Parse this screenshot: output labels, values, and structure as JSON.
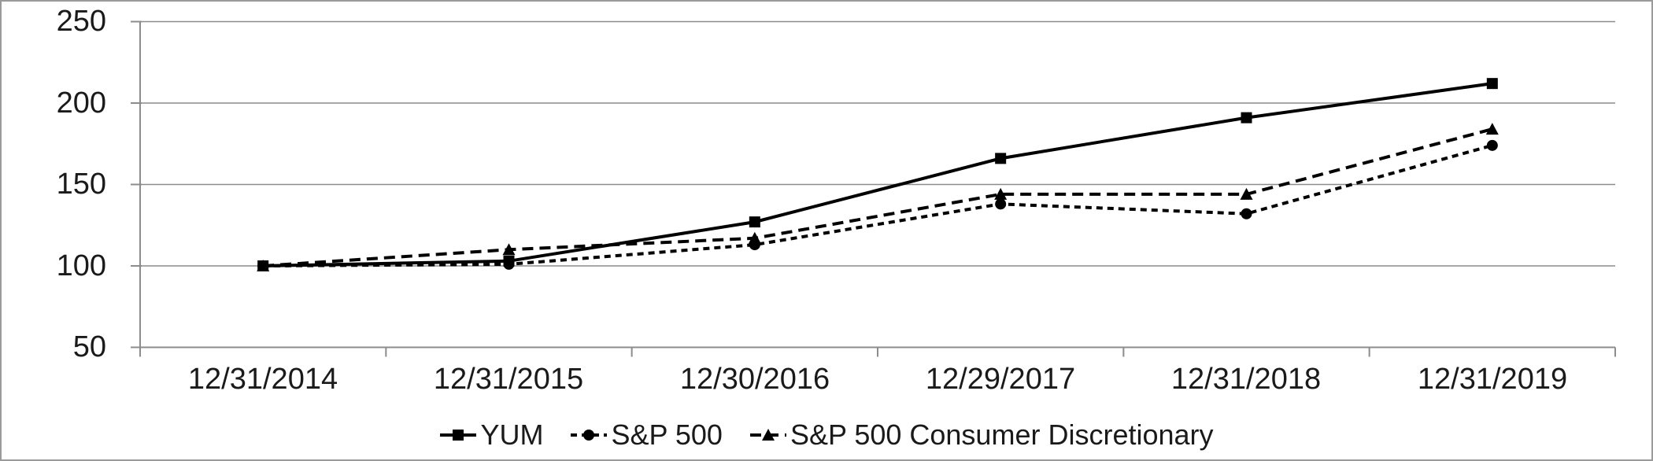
{
  "chart_data": {
    "type": "line",
    "title": "",
    "xlabel": "",
    "ylabel": "",
    "categories": [
      "12/31/2014",
      "12/31/2015",
      "12/30/2016",
      "12/29/2017",
      "12/31/2018",
      "12/31/2019"
    ],
    "series": [
      {
        "name": "YUM",
        "marker": "square",
        "line": "solid",
        "values": [
          100,
          103,
          127,
          166,
          191,
          212
        ]
      },
      {
        "name": "S&P 500",
        "marker": "circle",
        "line": "dashed-short",
        "values": [
          100,
          101,
          113,
          138,
          132,
          174
        ]
      },
      {
        "name": "S&P 500 Consumer Discretionary",
        "marker": "triangle",
        "line": "dashed-long",
        "values": [
          100,
          110,
          117,
          144,
          144,
          184
        ]
      }
    ],
    "ylim": [
      50,
      250
    ],
    "ytick_values": [
      250,
      200,
      150,
      100,
      50
    ],
    "ytick_labels": [
      "250",
      "200",
      "150",
      "100",
      "50"
    ],
    "grid": "horizontal",
    "legend_position": "bottom",
    "line_color": "#000000"
  },
  "colors": {
    "background": "#ffffff",
    "border": "#9a9a9a",
    "axis": "#8c8c8c",
    "gridline": "#8c8c8c",
    "text": "#1a1a1a",
    "series": "#000000"
  }
}
